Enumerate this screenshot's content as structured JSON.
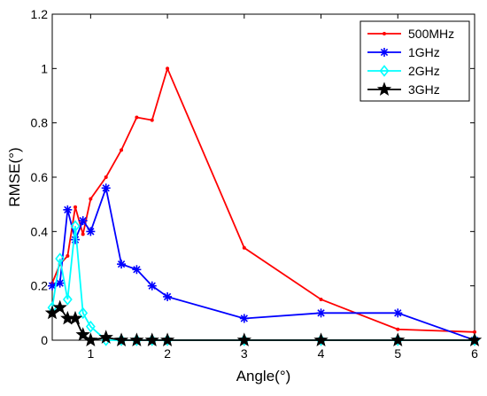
{
  "chart_data": {
    "type": "line",
    "title": "",
    "xlabel": "Angle(°)",
    "ylabel": "RMSE(°)",
    "xlim": [
      0.5,
      6
    ],
    "ylim": [
      0,
      1.2
    ],
    "x_ticks": [
      "1",
      "2",
      "3",
      "4",
      "5",
      "6"
    ],
    "y_ticks": [
      "0",
      "0.2",
      "0.4",
      "0.6",
      "0.8",
      "1",
      "1.2"
    ],
    "grid": false,
    "legend_position": "top-right",
    "series": [
      {
        "name": "500MHz",
        "color": "#ff0000",
        "marker": "dot",
        "x": [
          0.5,
          0.6,
          0.7,
          0.8,
          0.9,
          1.0,
          1.2,
          1.4,
          1.6,
          1.8,
          2.0,
          3.0,
          4.0,
          5.0,
          6.0
        ],
        "y": [
          0.21,
          0.28,
          0.31,
          0.49,
          0.39,
          0.52,
          0.6,
          0.7,
          0.82,
          0.81,
          1.0,
          0.34,
          0.15,
          0.04,
          0.03
        ]
      },
      {
        "name": "1GHz",
        "color": "#0000ff",
        "marker": "asterisk",
        "x": [
          0.5,
          0.6,
          0.7,
          0.8,
          0.9,
          1.0,
          1.2,
          1.4,
          1.6,
          1.8,
          2.0,
          3.0,
          4.0,
          5.0,
          6.0
        ],
        "y": [
          0.2,
          0.21,
          0.48,
          0.37,
          0.44,
          0.4,
          0.56,
          0.28,
          0.26,
          0.2,
          0.16,
          0.08,
          0.1,
          0.1,
          0.0
        ]
      },
      {
        "name": "2GHz",
        "color": "#00ffff",
        "marker": "diamond",
        "x": [
          0.5,
          0.6,
          0.7,
          0.8,
          0.9,
          1.0,
          1.2,
          1.4,
          1.6,
          1.8,
          2.0,
          3.0,
          4.0,
          5.0,
          6.0
        ],
        "y": [
          0.12,
          0.3,
          0.15,
          0.42,
          0.1,
          0.05,
          0.0,
          0.0,
          0.0,
          0.0,
          0.0,
          0.0,
          0.0,
          0.0,
          0.0
        ]
      },
      {
        "name": "3GHz",
        "color": "#000000",
        "marker": "star",
        "x": [
          0.5,
          0.6,
          0.7,
          0.8,
          0.9,
          1.0,
          1.2,
          1.4,
          1.6,
          1.8,
          2.0,
          3.0,
          4.0,
          5.0,
          6.0
        ],
        "y": [
          0.1,
          0.12,
          0.08,
          0.08,
          0.02,
          0.0,
          0.01,
          0.0,
          0.0,
          0.0,
          0.0,
          0.0,
          0.0,
          0.0,
          0.0
        ]
      }
    ]
  }
}
